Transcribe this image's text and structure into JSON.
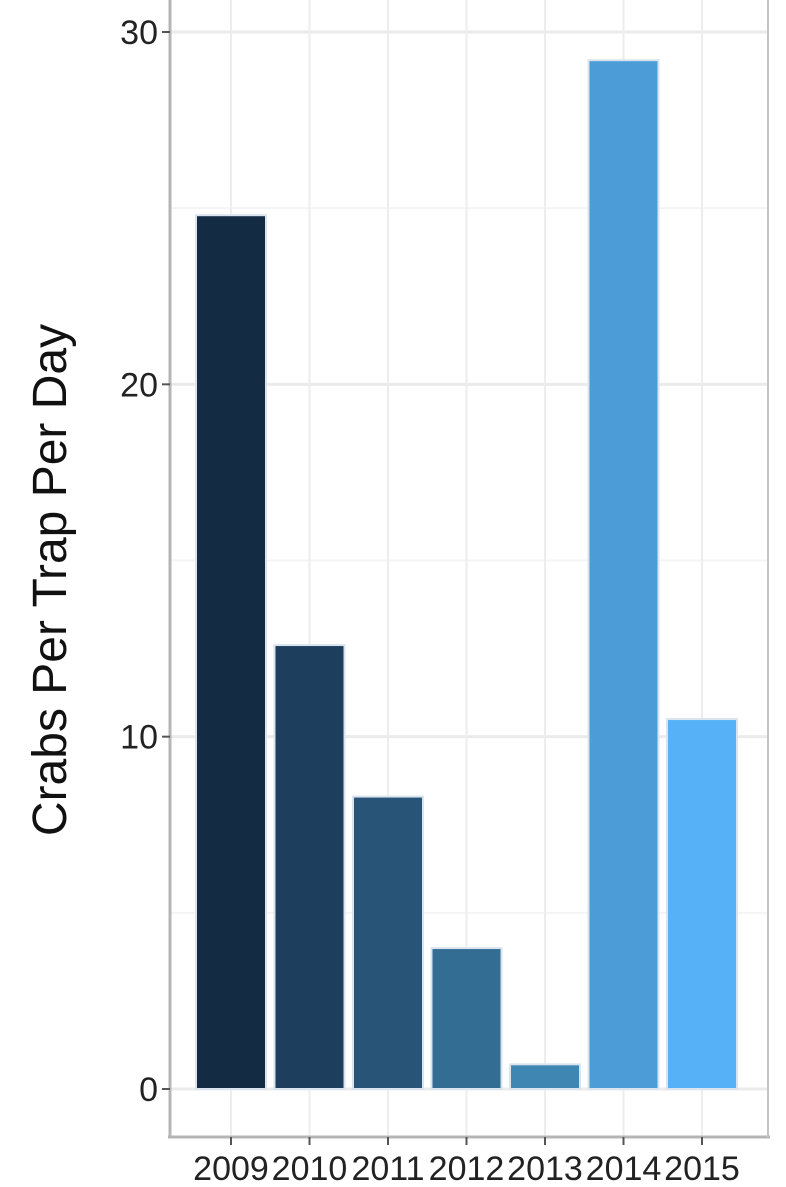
{
  "chart_data": {
    "type": "bar",
    "categories": [
      "2009",
      "2010",
      "2011",
      "2012",
      "2013",
      "2014",
      "2015"
    ],
    "values": [
      24.8,
      12.6,
      8.3,
      4.0,
      0.7,
      29.2,
      10.5
    ],
    "colors": [
      "#132B43",
      "#1D3E5C",
      "#285577",
      "#336D94",
      "#3F86B3",
      "#4B9CD7",
      "#56B1F7"
    ],
    "title": "",
    "xlabel": "",
    "ylabel": "Crabs Per Trap Per Day",
    "ylim": [
      0,
      30
    ],
    "yticks": [
      0,
      10,
      20,
      30
    ],
    "grid": true,
    "legend": "none"
  }
}
